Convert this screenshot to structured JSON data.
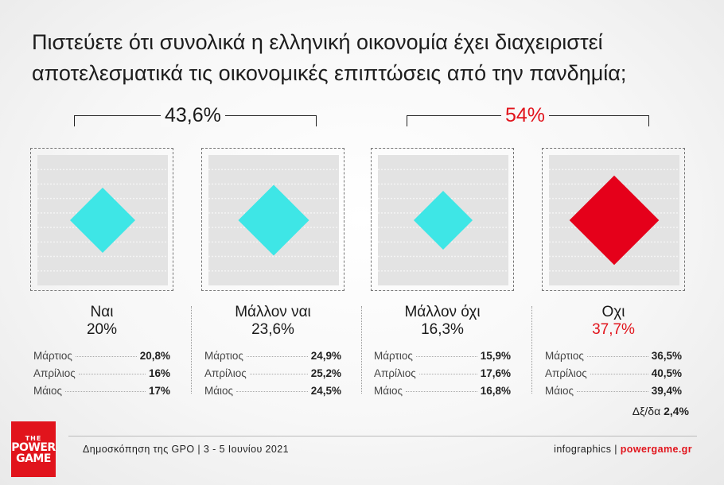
{
  "title": "Πιστεύετε ότι συνολικά η ελληνική οικονομία έχει διαχειριστεί αποτελεσματικά τις οικονομικές επιπτώσεις από την πανδημία;",
  "groups": {
    "positive": {
      "label": "43,6%",
      "value": 43.6,
      "color": "#1a1a1a"
    },
    "negative": {
      "label": "54%",
      "value": 54,
      "color": "#e1141c"
    }
  },
  "colors": {
    "cyan": "#3ee6e6",
    "red": "#e5001a",
    "accent": "#e1141c"
  },
  "chart_data": {
    "type": "bar",
    "title": "Πιστεύετε ότι συνολικά η ελληνική οικονομία έχει διαχειριστεί αποτελεσματικά τις οικονομικές επιπτώσεις από την πανδημία;",
    "categories": [
      "Ναι",
      "Μάλλον ναι",
      "Μάλλον όχι",
      "Οχι"
    ],
    "values": [
      20,
      23.6,
      16.3,
      37.7
    ],
    "value_labels": [
      "20%",
      "23,6%",
      "16,3%",
      "37,7%"
    ],
    "value_colors": [
      "#1a1a1a",
      "#1a1a1a",
      "#1a1a1a",
      "#e1141c"
    ],
    "marker_colors": [
      "#3ee6e6",
      "#3ee6e6",
      "#3ee6e6",
      "#e5001a"
    ],
    "series": [
      {
        "name": "Μάρτιος",
        "values": [
          20.8,
          24.9,
          15.9,
          36.5
        ],
        "labels": [
          "20,8%",
          "24,9%",
          "15,9%",
          "36,5%"
        ]
      },
      {
        "name": "Απρίλιος",
        "values": [
          16,
          25.2,
          17.6,
          40.5
        ],
        "labels": [
          "16%",
          "25,2%",
          "17,6%",
          "40,5%"
        ]
      },
      {
        "name": "Μάιος",
        "values": [
          17,
          24.5,
          16.8,
          39.4
        ],
        "labels": [
          "17%",
          "24,5%",
          "16,8%",
          "39,4%"
        ]
      }
    ],
    "ylim": [
      0,
      40
    ]
  },
  "diff": {
    "label": "Δξ/δα",
    "value": "2,4%"
  },
  "logo": {
    "line1": "THE",
    "line2": "POWER",
    "line3": "GAME"
  },
  "footer": {
    "source": "Δημοσκόπηση της GPO | 3 - 5 Ιουνίου 2021",
    "credit": "infographics | ",
    "site": "powergame.gr"
  }
}
